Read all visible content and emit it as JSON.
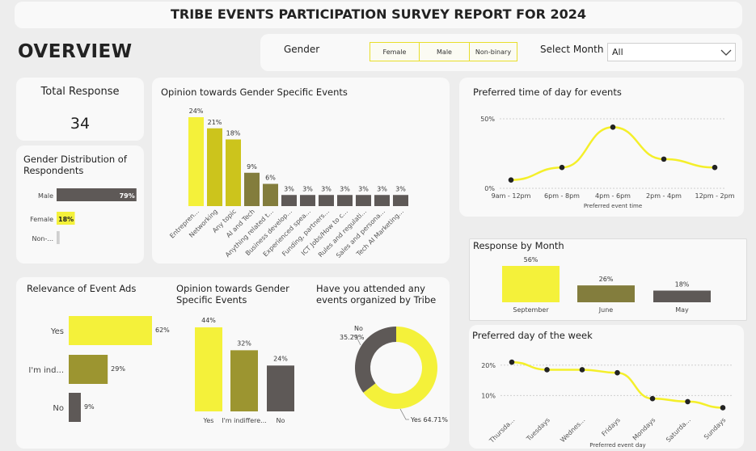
{
  "report_title": "TRIBE EVENTS PARTICIPATION SURVEY REPORT FOR 2024",
  "overview_label": "OVERVIEW",
  "filters": {
    "gender_label": "Gender",
    "gender_options": [
      "Female",
      "Male",
      "Non-binary"
    ],
    "month_label": "Select Month",
    "month_value": "All",
    "dropdown_icon": "chevron-down-icon"
  },
  "total_response": {
    "label": "Total Response",
    "value": "34"
  },
  "colors": {
    "yellow": "#f4f13a",
    "olive_light": "#ccc41c",
    "olive": "#9c9530",
    "olive_dark": "#837d3d",
    "gray": "#5e5957",
    "line_yellow": "#f4ef2a"
  },
  "chart_data": [
    {
      "id": "gender_distribution",
      "type": "bar",
      "orientation": "horizontal",
      "title": "Gender Distribution of Respondents",
      "categories": [
        "Male",
        "Female",
        "Non-..."
      ],
      "values": [
        79,
        18,
        3
      ],
      "labels": [
        "79%",
        "18%",
        ""
      ],
      "unit": "%"
    },
    {
      "id": "opinion_gender_specific_topics",
      "type": "bar",
      "title": "Opinion towards Gender Specific Events",
      "categories": [
        "Entrepren...",
        "Networking",
        "Any topic",
        "AI and Tech",
        "Anything related t...",
        "Business develop...",
        "Experienced spea...",
        "Funding, partners...",
        "ICT Jobs/How to c...",
        "Rules and regulati...",
        "Sales and persona...",
        "Tech AI Marketing..."
      ],
      "values": [
        24,
        21,
        18,
        9,
        6,
        3,
        3,
        3,
        3,
        3,
        3,
        3
      ],
      "labels": [
        "24%",
        "21%",
        "18%",
        "9%",
        "6%",
        "3%",
        "3%",
        "3%",
        "3%",
        "3%",
        "3%",
        "3%"
      ],
      "unit": "%"
    },
    {
      "id": "preferred_time",
      "type": "line",
      "title": "Preferred time of day for events",
      "xlabel": "Preferred event time",
      "categories": [
        "9am - 12pm",
        "6pm - 8pm",
        "4pm - 6pm",
        "2pm - 4pm",
        "12pm - 2pm"
      ],
      "values": [
        6,
        15,
        44,
        21,
        15
      ],
      "yticks": [
        "0%",
        "50%"
      ],
      "ylim": [
        0,
        50
      ]
    },
    {
      "id": "response_by_month",
      "type": "bar",
      "title": "Response by Month",
      "categories": [
        "September",
        "June",
        "May"
      ],
      "values": [
        56,
        26,
        18
      ],
      "labels": [
        "56%",
        "26%",
        "18%"
      ],
      "unit": "%"
    },
    {
      "id": "preferred_day",
      "type": "line",
      "title": "Preferred day of the week",
      "xlabel": "Preferred event day",
      "categories": [
        "Thursda...",
        "Tuesdays",
        "Wednes...",
        "Fridays",
        "Mondays",
        "Saturda...",
        "Sundays"
      ],
      "values": [
        21,
        18.5,
        18.5,
        17.5,
        9,
        8,
        6
      ],
      "yticks": [
        "10%",
        "20%"
      ],
      "ylim": [
        0,
        25
      ]
    },
    {
      "id": "relevance_of_ads",
      "type": "bar",
      "orientation": "horizontal",
      "title": "Relevance of Event Ads",
      "categories": [
        "Yes",
        "I'm ind...",
        "No"
      ],
      "values": [
        62,
        29,
        9
      ],
      "labels": [
        "62%",
        "29%",
        "9%"
      ],
      "unit": "%"
    },
    {
      "id": "opinion_gender_specific",
      "type": "bar",
      "title": "Opinion towards Gender Specific Events",
      "categories": [
        "Yes",
        "I'm indiffere...",
        "No"
      ],
      "values": [
        44,
        32,
        24
      ],
      "labels": [
        "44%",
        "32%",
        "24%"
      ],
      "unit": "%"
    },
    {
      "id": "attended_tribe_events",
      "type": "pie",
      "title": "Have you attended any events organized by Tribe",
      "categories": [
        "Yes",
        "No"
      ],
      "values": [
        64.71,
        35.29
      ],
      "labels": [
        "Yes 64.71%",
        "No 35.29%"
      ]
    }
  ]
}
